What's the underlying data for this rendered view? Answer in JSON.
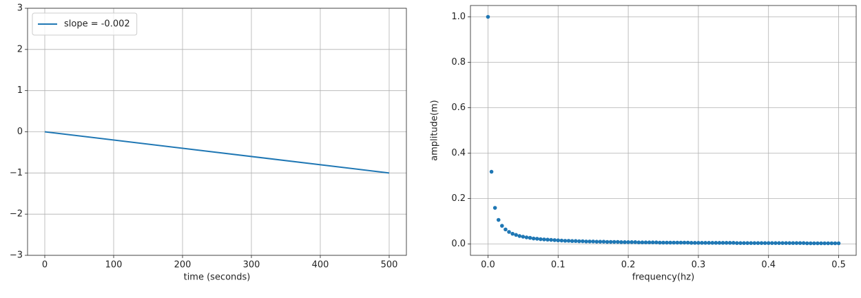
{
  "chart_data": [
    {
      "type": "line",
      "xlabel": "time (seconds)",
      "series": [
        {
          "name": "slope = -0.002",
          "color": "#1f77b4",
          "x": [
            0,
            500
          ],
          "values": [
            0,
            -1
          ]
        }
      ],
      "xlim": [
        -25,
        525
      ],
      "xticks": [
        0,
        100,
        200,
        300,
        400,
        500
      ],
      "ylim": [
        -3,
        3
      ],
      "yticks": [
        {
          "value": -3,
          "label": "−3"
        },
        {
          "value": -2,
          "label": "−2"
        },
        {
          "value": -1,
          "label": "−1"
        },
        0,
        1,
        2,
        3
      ],
      "grid": true,
      "legend": "upper left"
    },
    {
      "type": "scatter",
      "xlabel": "frequency(hz)",
      "ylabel": "amplitude(m)",
      "series": [
        {
          "color": "#1f77b4",
          "x": [
            0,
            0.005,
            0.01,
            0.015,
            0.02,
            0.025,
            0.03,
            0.035,
            0.04,
            0.045,
            0.05,
            0.055,
            0.06,
            0.065,
            0.07,
            0.075,
            0.08,
            0.085,
            0.09,
            0.095,
            0.1,
            0.105,
            0.11,
            0.115,
            0.12,
            0.125,
            0.13,
            0.135,
            0.14,
            0.145,
            0.15,
            0.155,
            0.16,
            0.165,
            0.17,
            0.175,
            0.18,
            0.185,
            0.19,
            0.195,
            0.2,
            0.205,
            0.21,
            0.215,
            0.22,
            0.225,
            0.23,
            0.235,
            0.24,
            0.245,
            0.25,
            0.255,
            0.26,
            0.265,
            0.27,
            0.275,
            0.28,
            0.285,
            0.29,
            0.295,
            0.3,
            0.305,
            0.31,
            0.315,
            0.32,
            0.325,
            0.33,
            0.335,
            0.34,
            0.345,
            0.35,
            0.355,
            0.36,
            0.365,
            0.37,
            0.375,
            0.38,
            0.385,
            0.39,
            0.395,
            0.4,
            0.405,
            0.41,
            0.415,
            0.42,
            0.425,
            0.43,
            0.435,
            0.44,
            0.445,
            0.45,
            0.455,
            0.46,
            0.465,
            0.47,
            0.475,
            0.48,
            0.485,
            0.49,
            0.495,
            0.5
          ],
          "values": [
            1.0,
            0.318,
            0.159,
            0.106,
            0.08,
            0.064,
            0.053,
            0.045,
            0.04,
            0.035,
            0.032,
            0.029,
            0.027,
            0.024,
            0.023,
            0.021,
            0.02,
            0.019,
            0.018,
            0.017,
            0.016,
            0.015,
            0.014,
            0.014,
            0.013,
            0.013,
            0.012,
            0.012,
            0.011,
            0.011,
            0.011,
            0.01,
            0.01,
            0.01,
            0.009,
            0.009,
            0.009,
            0.009,
            0.008,
            0.008,
            0.008,
            0.008,
            0.008,
            0.007,
            0.007,
            0.007,
            0.007,
            0.007,
            0.007,
            0.006,
            0.006,
            0.006,
            0.006,
            0.006,
            0.006,
            0.006,
            0.006,
            0.006,
            0.005,
            0.005,
            0.005,
            0.005,
            0.005,
            0.005,
            0.005,
            0.005,
            0.005,
            0.005,
            0.005,
            0.005,
            0.005,
            0.004,
            0.004,
            0.004,
            0.004,
            0.004,
            0.004,
            0.004,
            0.004,
            0.004,
            0.004,
            0.004,
            0.004,
            0.004,
            0.004,
            0.004,
            0.004,
            0.004,
            0.004,
            0.004,
            0.004,
            0.003,
            0.003,
            0.003,
            0.003,
            0.003,
            0.003,
            0.003,
            0.003,
            0.003,
            0.003
          ]
        }
      ],
      "xlim": [
        -0.025,
        0.525
      ],
      "xticks": [
        {
          "value": 0,
          "label": "0.0"
        },
        0.1,
        0.2,
        0.3,
        0.4,
        0.5
      ],
      "ylim": [
        -0.05,
        1.05
      ],
      "yticks": [
        {
          "value": 0,
          "label": "0.0"
        },
        0.2,
        0.4,
        0.6,
        0.8,
        {
          "value": 1,
          "label": "1.0"
        }
      ],
      "grid": true
    }
  ]
}
